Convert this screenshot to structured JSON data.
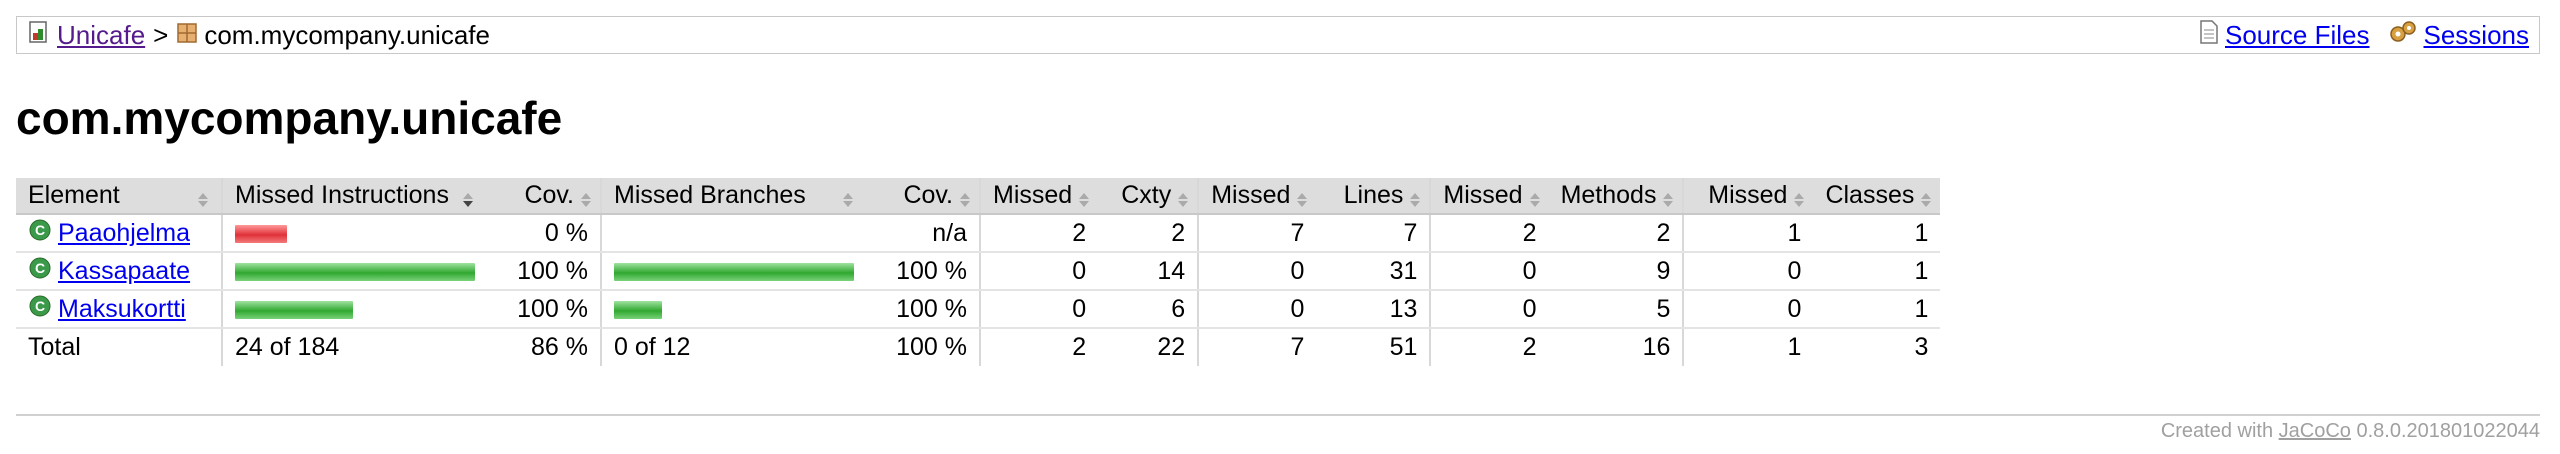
{
  "breadcrumb": {
    "root_label": "Unicafe",
    "separator": ">",
    "current_label": "com.mycompany.unicafe",
    "source_files_label": "Source Files",
    "sessions_label": "Sessions"
  },
  "page_title": "com.mycompany.unicafe",
  "table": {
    "headers": {
      "element": "Element",
      "missed_instructions": "Missed Instructions",
      "cov_instructions": "Cov.",
      "missed_branches": "Missed Branches",
      "cov_branches": "Cov.",
      "missed_cxty": "Missed",
      "cxty": "Cxty",
      "missed_lines": "Missed",
      "lines": "Lines",
      "missed_methods": "Missed",
      "methods": "Methods",
      "missed_classes": "Missed",
      "classes": "Classes"
    },
    "rows": [
      {
        "name": "Paaohjelma",
        "instr_missed_fraction": 0.216,
        "instr_covered_fraction": 0,
        "instr_cov": "0 %",
        "branch_missed_fraction": 0,
        "branch_covered_fraction": 0,
        "branch_cov": "n/a",
        "missed_cxty": "2",
        "cxty": "2",
        "missed_lines": "7",
        "lines": "7",
        "missed_methods": "2",
        "methods": "2",
        "missed_classes": "1",
        "classes": "1"
      },
      {
        "name": "Kassapaate",
        "instr_missed_fraction": 0,
        "instr_covered_fraction": 1.0,
        "instr_cov": "100 %",
        "branch_missed_fraction": 0,
        "branch_covered_fraction": 1.0,
        "branch_cov": "100 %",
        "missed_cxty": "0",
        "cxty": "14",
        "missed_lines": "0",
        "lines": "31",
        "missed_methods": "0",
        "methods": "9",
        "missed_classes": "0",
        "classes": "1"
      },
      {
        "name": "Maksukortti",
        "instr_missed_fraction": 0,
        "instr_covered_fraction": 0.49,
        "instr_cov": "100 %",
        "branch_missed_fraction": 0,
        "branch_covered_fraction": 0.2,
        "branch_cov": "100 %",
        "missed_cxty": "0",
        "cxty": "6",
        "missed_lines": "0",
        "lines": "13",
        "missed_methods": "0",
        "methods": "5",
        "missed_classes": "0",
        "classes": "1"
      }
    ],
    "total": {
      "label": "Total",
      "instr": "24 of 184",
      "instr_cov": "86 %",
      "branch": "0 of 12",
      "branch_cov": "100 %",
      "missed_cxty": "2",
      "cxty": "22",
      "missed_lines": "7",
      "lines": "51",
      "missed_methods": "2",
      "methods": "16",
      "missed_classes": "1",
      "classes": "3"
    }
  },
  "footer": {
    "prefix": "Created with",
    "link_label": "JaCoCo",
    "version": "0.8.0.201801022044"
  },
  "colors": {
    "missed": "#e0313a",
    "covered": "#30a830",
    "header_bg": "#dddddd"
  }
}
